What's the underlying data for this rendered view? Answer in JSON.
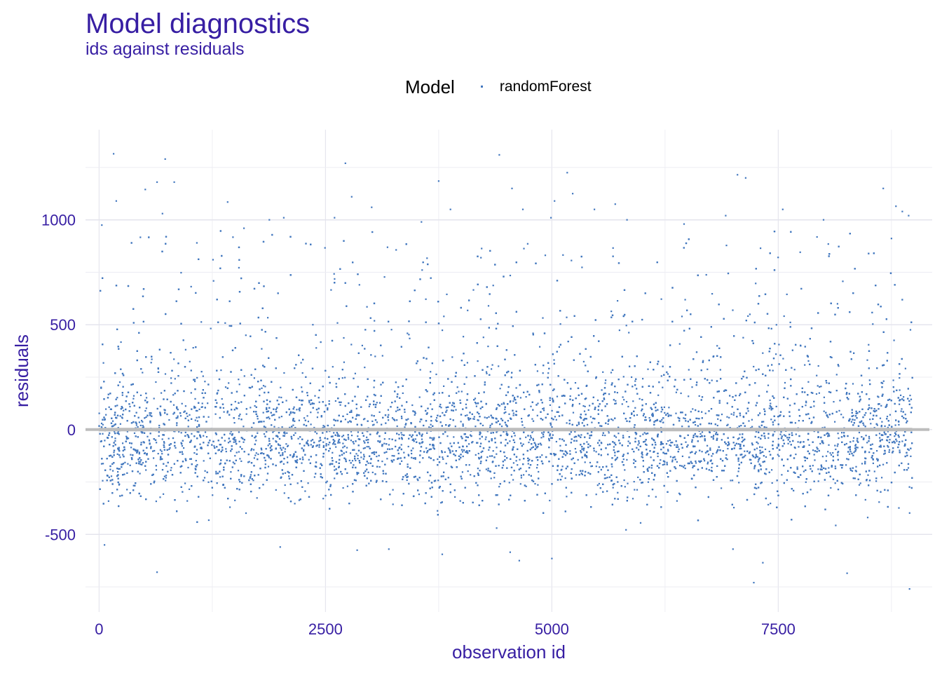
{
  "chart_data": {
    "type": "scatter",
    "title": "Model diagnostics",
    "subtitle": "ids against residuals",
    "xlabel": "observation id",
    "ylabel": "residuals",
    "xlim": [
      -150,
      9200
    ],
    "ylim": [
      -870,
      1430
    ],
    "x_ticks": [
      "0",
      "2500",
      "5000",
      "7500"
    ],
    "x_tick_values": [
      0,
      2500,
      5000,
      7500
    ],
    "y_ticks": [
      "1000",
      "500",
      "0",
      "-500"
    ],
    "y_tick_values": [
      1000,
      500,
      0,
      -500
    ],
    "reference_line": 0,
    "grid": true,
    "legend_position": "top",
    "legend_title": "Model",
    "series": [
      {
        "name": "randomForest",
        "color": "#4378bf",
        "x_range": [
          0,
          8980
        ],
        "n_points": 9000,
        "residual_median": -60,
        "points": [
          [
            30,
            975
          ],
          [
            160,
            1315
          ],
          [
            190,
            1090
          ],
          [
            510,
            1145
          ],
          [
            640,
            1180
          ],
          [
            700,
            1030
          ],
          [
            730,
            1290
          ],
          [
            830,
            1180
          ],
          [
            1080,
            890
          ],
          [
            1420,
            1085
          ],
          [
            1600,
            960
          ],
          [
            1880,
            1000
          ],
          [
            2040,
            1010
          ],
          [
            2600,
            1010
          ],
          [
            2720,
            1270
          ],
          [
            2790,
            1110
          ],
          [
            3010,
            1060
          ],
          [
            3560,
            990
          ],
          [
            3750,
            1185
          ],
          [
            3880,
            1050
          ],
          [
            4420,
            1310
          ],
          [
            4560,
            1150
          ],
          [
            4680,
            1050
          ],
          [
            4990,
            1010
          ],
          [
            5030,
            1090
          ],
          [
            5170,
            1225
          ],
          [
            5230,
            1125
          ],
          [
            5470,
            1050
          ],
          [
            5700,
            1075
          ],
          [
            5830,
            1000
          ],
          [
            6460,
            980
          ],
          [
            6920,
            1020
          ],
          [
            7050,
            1215
          ],
          [
            7140,
            1200
          ],
          [
            7550,
            1050
          ],
          [
            8000,
            1000
          ],
          [
            8660,
            1150
          ],
          [
            8800,
            1065
          ],
          [
            8870,
            1040
          ],
          [
            8940,
            1020
          ],
          [
            640,
            -680
          ],
          [
            2850,
            -575
          ],
          [
            3790,
            -595
          ],
          [
            4390,
            -470
          ],
          [
            4540,
            -585
          ],
          [
            4640,
            -625
          ],
          [
            5000,
            -615
          ],
          [
            5980,
            -445
          ],
          [
            7000,
            -570
          ],
          [
            7230,
            -730
          ],
          [
            7330,
            -635
          ],
          [
            8260,
            -685
          ],
          [
            8950,
            -760
          ],
          [
            60,
            -550
          ],
          [
            2000,
            -560
          ],
          [
            3200,
            -570
          ]
        ]
      }
    ]
  }
}
